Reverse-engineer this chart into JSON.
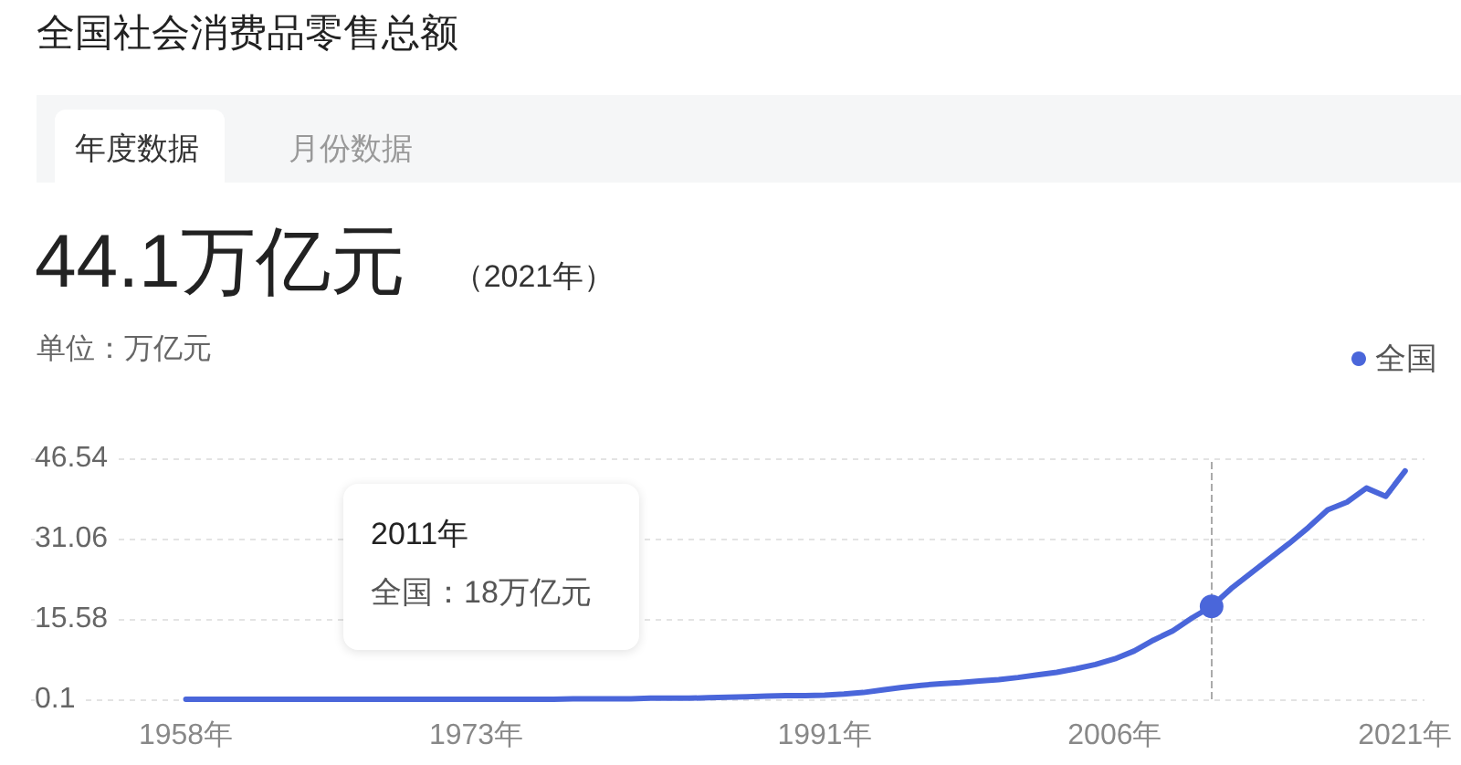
{
  "chart_data": {
    "type": "line",
    "title": "全国社会消费品零售总额",
    "subtitle": "44.1万亿元",
    "ylabel": "单位：万亿元",
    "annotations": [
      "年度数据",
      "月份数据",
      "（2021年）",
      "2011年",
      "全国：18万亿元"
    ],
    "x": [
      1958,
      1959,
      1960,
      1961,
      1962,
      1963,
      1964,
      1965,
      1966,
      1967,
      1968,
      1969,
      1970,
      1971,
      1972,
      1973,
      1974,
      1975,
      1976,
      1977,
      1978,
      1979,
      1980,
      1981,
      1982,
      1983,
      1984,
      1985,
      1986,
      1987,
      1988,
      1989,
      1990,
      1991,
      1992,
      1993,
      1994,
      1995,
      1996,
      1997,
      1998,
      1999,
      2000,
      2001,
      2002,
      2003,
      2004,
      2005,
      2006,
      2007,
      2008,
      2009,
      2010,
      2011,
      2012,
      2013,
      2014,
      2015,
      2016,
      2017,
      2018,
      2019,
      2020,
      2021
    ],
    "series": [
      {
        "name": "全国",
        "color": "#4a66da",
        "values": [
          0.1,
          0.1,
          0.1,
          0.1,
          0.1,
          0.1,
          0.1,
          0.1,
          0.1,
          0.1,
          0.1,
          0.1,
          0.1,
          0.1,
          0.1,
          0.1,
          0.1,
          0.1,
          0.1,
          0.1,
          0.2,
          0.2,
          0.2,
          0.2,
          0.3,
          0.3,
          0.3,
          0.4,
          0.5,
          0.6,
          0.7,
          0.8,
          0.8,
          0.9,
          1.1,
          1.4,
          1.9,
          2.4,
          2.8,
          3.1,
          3.3,
          3.6,
          3.9,
          4.3,
          4.8,
          5.3,
          6.0,
          6.8,
          7.9,
          9.4,
          11.5,
          13.3,
          15.8,
          18,
          21.4,
          24.3,
          27.2,
          30.1,
          33.2,
          36.6,
          38.1,
          40.8,
          39.2,
          44.1
        ]
      },
      {
        "type": "scatter",
        "color": "#4a66da",
        "marker": "circle",
        "x": [
          2011
        ],
        "values": [
          18
        ]
      }
    ],
    "xlim": [
      1950,
      2022
    ],
    "xticks": [
      {
        "value": 1958,
        "label": "1958年"
      },
      {
        "value": 1973,
        "label": "1973年"
      },
      {
        "value": 1991,
        "label": "1991年"
      },
      {
        "value": 2006,
        "label": "2006年"
      },
      {
        "value": 2021,
        "label": "2021年"
      }
    ],
    "ylim": [
      0.1,
      46.54
    ],
    "yticks": [
      0.1,
      15.58,
      31.06,
      46.54
    ],
    "ref_lines": [
      {
        "axis": "x",
        "value": 2011,
        "color": "#aaaaaa",
        "line_style": "dashed"
      }
    ],
    "grid": "y",
    "legend": "top right",
    "marker": "none"
  }
}
